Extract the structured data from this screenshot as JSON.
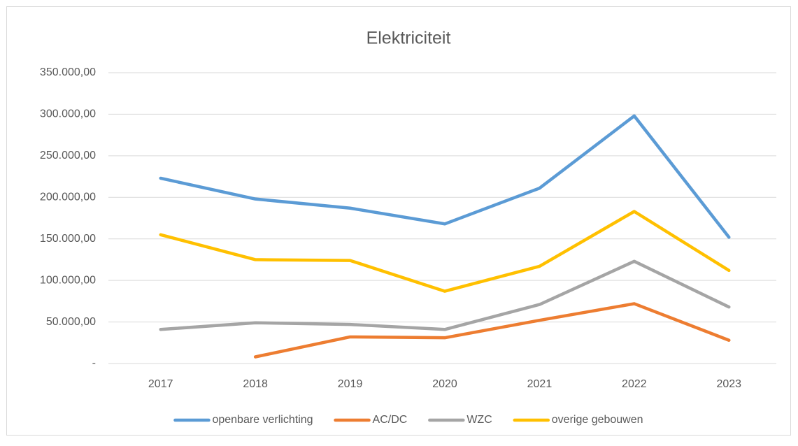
{
  "chart_data": {
    "type": "line",
    "title": "Elektriciteit",
    "categories": [
      "2017",
      "2018",
      "2019",
      "2020",
      "2021",
      "2022",
      "2023"
    ],
    "series": [
      {
        "name": "openbare verlichting",
        "color": "#5b9bd5",
        "values": [
          223000,
          198000,
          187000,
          168000,
          211000,
          298000,
          152000
        ]
      },
      {
        "name": "AC/DC",
        "color": "#ed7d31",
        "values": [
          null,
          8000,
          32000,
          31000,
          52000,
          72000,
          28000
        ]
      },
      {
        "name": "WZC",
        "color": "#a5a5a5",
        "values": [
          41000,
          49000,
          47000,
          41000,
          71000,
          123000,
          68000
        ]
      },
      {
        "name": "overige gebouwen",
        "color": "#ffc000",
        "values": [
          155000,
          125000,
          124000,
          87000,
          117000,
          183000,
          112000
        ]
      }
    ],
    "ylim": [
      0,
      350000
    ],
    "yticks": [
      {
        "value": 0,
        "label": "-"
      },
      {
        "value": 50000,
        "label": "50.000,00"
      },
      {
        "value": 100000,
        "label": "100.000,00"
      },
      {
        "value": 150000,
        "label": "150.000,00"
      },
      {
        "value": 200000,
        "label": "200.000,00"
      },
      {
        "value": 250000,
        "label": "250.000,00"
      },
      {
        "value": 300000,
        "label": "300.000,00"
      },
      {
        "value": 350000,
        "label": "350.000,00"
      }
    ],
    "grid": true,
    "legend": "bottom"
  }
}
